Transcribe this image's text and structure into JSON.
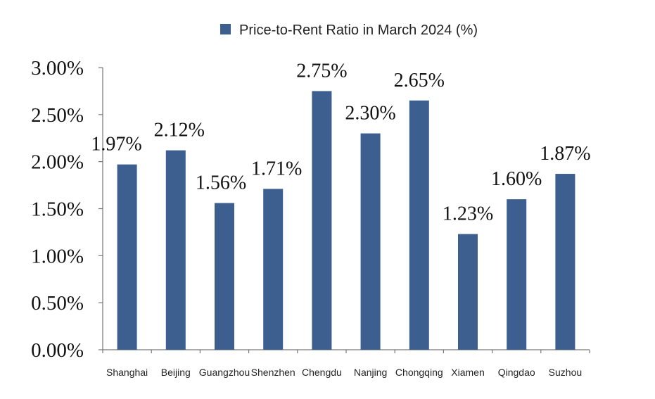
{
  "chart_data": {
    "type": "bar",
    "categories": [
      "Shanghai",
      "Beijing",
      "Guangzhou",
      "Shenzhen",
      "Chengdu",
      "Nanjing",
      "Chongqing",
      "Xiamen",
      "Qingdao",
      "Suzhou"
    ],
    "series": [
      {
        "name": "Price-to-Rent Ratio in March 2024 (%)",
        "values": [
          1.97,
          2.12,
          1.56,
          1.71,
          2.75,
          2.3,
          2.65,
          1.23,
          1.6,
          1.87
        ],
        "labels": [
          "1.97%",
          "2.12%",
          "1.56%",
          "1.71%",
          "2.75%",
          "2.30%",
          "2.65%",
          "1.23%",
          "1.60%",
          "1.87%"
        ],
        "color": "#3d5f90"
      }
    ],
    "ylim": [
      0,
      3
    ],
    "yticks": [
      {
        "value": 3.0,
        "label": "3.00%"
      },
      {
        "value": 2.5,
        "label": "2.50%"
      },
      {
        "value": 2.0,
        "label": "2.00%"
      },
      {
        "value": 1.5,
        "label": "1.50%"
      },
      {
        "value": 1.0,
        "label": "1.00%"
      },
      {
        "value": 0.5,
        "label": "0.50%"
      },
      {
        "value": 0.0,
        "label": "0.00%"
      }
    ],
    "xlabel": "",
    "ylabel": "",
    "grid": false,
    "legend": "top-center"
  }
}
